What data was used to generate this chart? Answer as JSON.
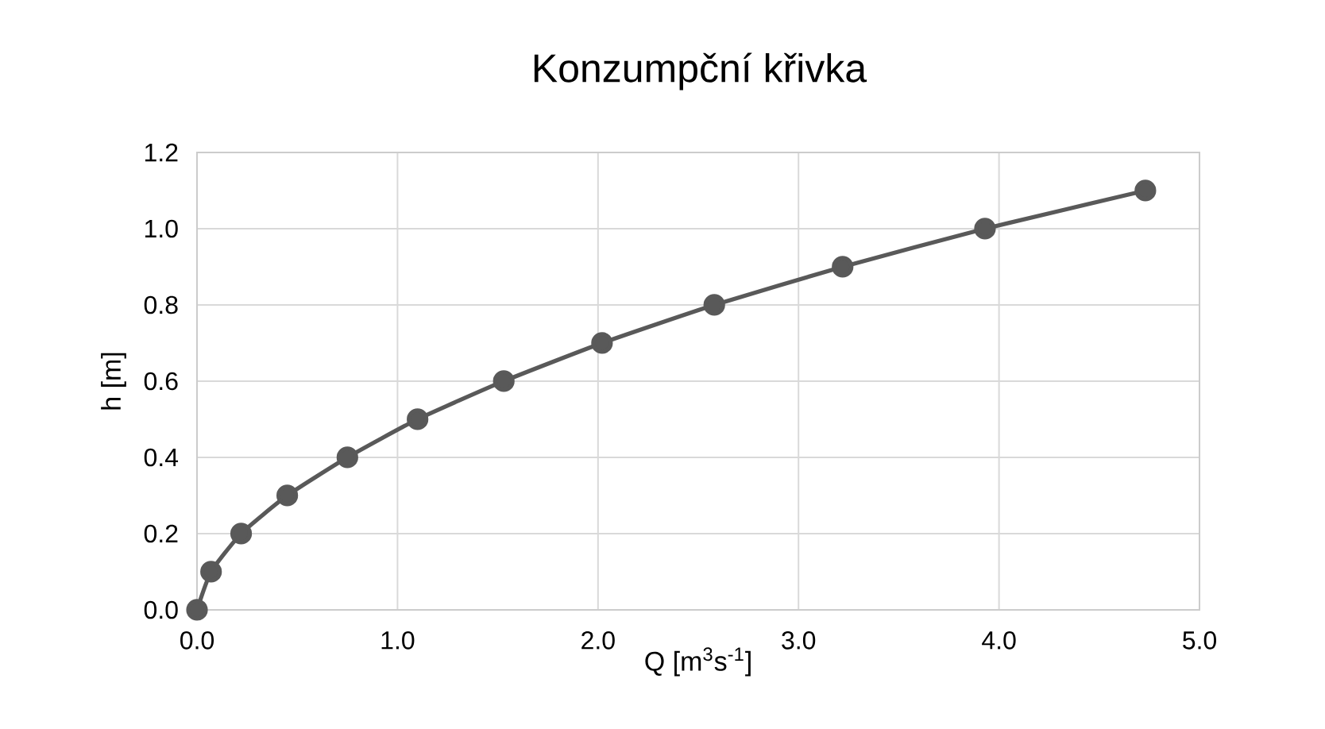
{
  "chart_data": {
    "type": "line",
    "title": "Konzumpční křivka",
    "xlabel": "Q [m$^{3}$s$^{-1}$]",
    "ylabel": "h [m]",
    "x": [
      0,
      0.07,
      0.22,
      0.45,
      0.75,
      1.1,
      1.53,
      2.02,
      2.58,
      3.22,
      3.93,
      4.73
    ],
    "series": [
      {
        "color": "#595959",
        "values": [
          0,
          0.1,
          0.2,
          0.3,
          0.4,
          0.5,
          0.6,
          0.7,
          0.8,
          0.9,
          1.0,
          1.1
        ]
      }
    ],
    "xlim": [
      0,
      5
    ],
    "ylim": [
      0,
      1.2
    ],
    "xticks": [
      {
        "value": 0,
        "label": "0.0"
      },
      {
        "value": 1,
        "label": "1.0"
      },
      {
        "value": 2,
        "label": "2.0"
      },
      {
        "value": 3,
        "label": "3.0"
      },
      {
        "value": 4,
        "label": "4.0"
      },
      {
        "value": 5,
        "label": "5.0"
      }
    ],
    "yticks": [
      {
        "value": 0,
        "label": "0.0"
      },
      {
        "value": 0.2,
        "label": "0.2"
      },
      {
        "value": 0.4,
        "label": "0.4"
      },
      {
        "value": 0.6,
        "label": "0.6"
      },
      {
        "value": 0.8,
        "label": "0.8"
      },
      {
        "value": 1.0,
        "label": "1.0"
      },
      {
        "value": 1.2,
        "label": "1.2"
      }
    ],
    "grid": true,
    "marker": "circle",
    "line_style": "solid"
  }
}
